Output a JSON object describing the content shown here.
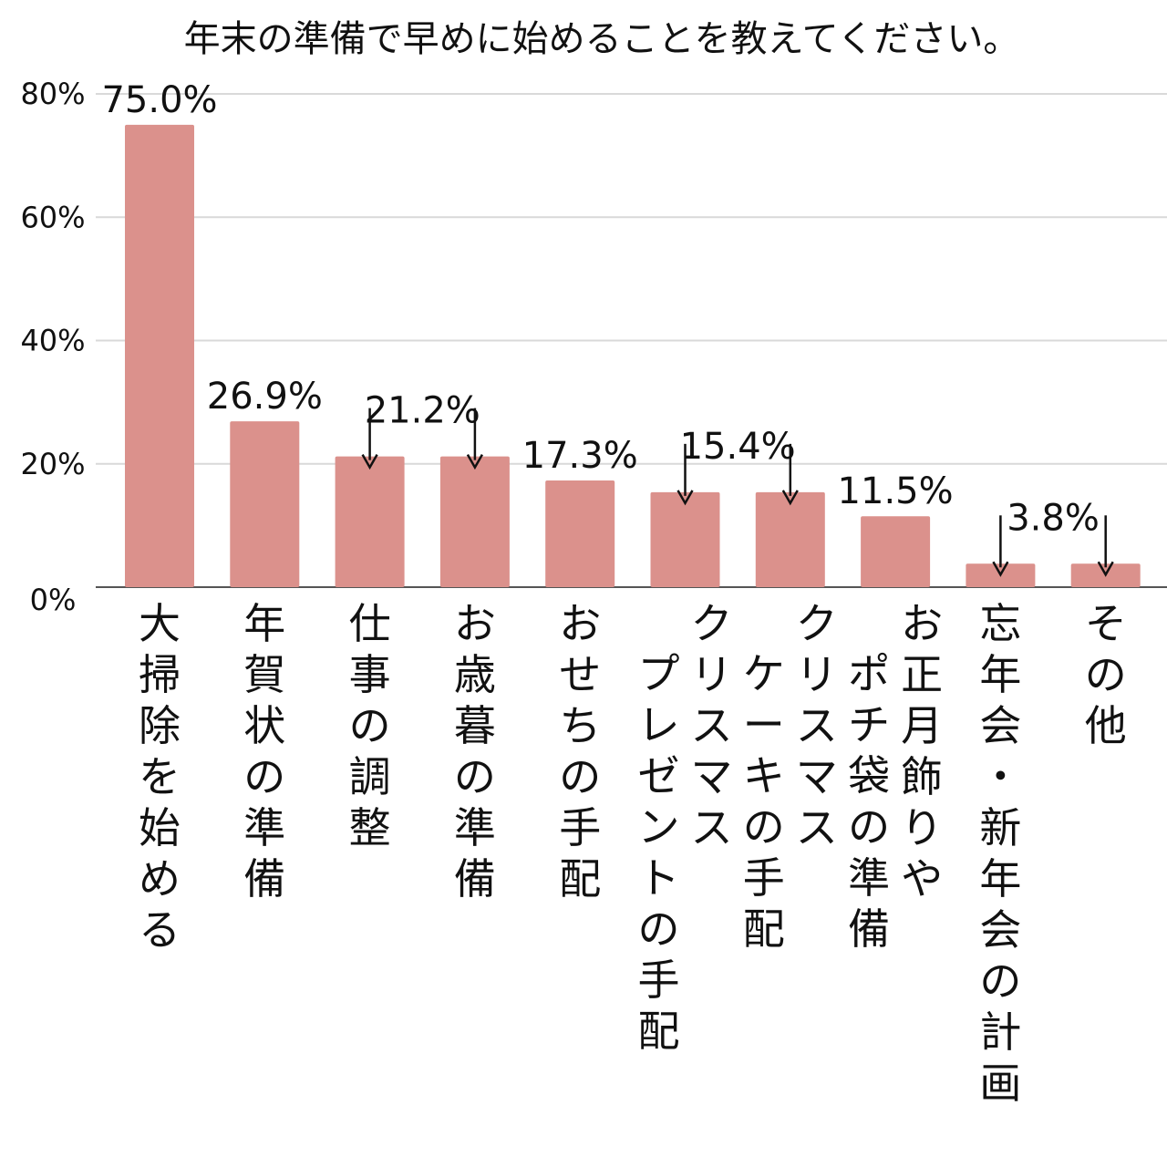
{
  "chart_data": {
    "type": "bar",
    "title": "年末の準備で早めに始めることを教えてください。",
    "xlabel": "",
    "ylabel": "",
    "ylim": [
      0,
      80
    ],
    "yticks": [
      "0%",
      "20%",
      "40%",
      "60%",
      "80%"
    ],
    "ytick_values": [
      0,
      20,
      40,
      60,
      80
    ],
    "grid": true,
    "legend": "none",
    "bar_color": "#db918c",
    "categories": [
      [
        "大掃除を始める"
      ],
      [
        "年賀状の準備"
      ],
      [
        "仕事の調整"
      ],
      [
        "お歳暮の準備"
      ],
      [
        "おせちの手配"
      ],
      [
        "クリスマス",
        "プレゼントの手配"
      ],
      [
        "クリスマス",
        "ケーキの手配"
      ],
      [
        "お正月飾りや",
        "ポチ袋の準備"
      ],
      [
        "忘年会・新年会の計画"
      ],
      [
        "その他"
      ]
    ],
    "values": [
      75.0,
      26.9,
      21.2,
      21.2,
      17.3,
      15.4,
      15.4,
      11.5,
      3.8,
      3.8
    ],
    "data_labels": [
      "75.0%",
      "26.9%",
      "21.2%",
      "",
      "17.3%",
      "15.4%",
      "",
      "11.5%",
      "3.8%",
      ""
    ],
    "label_arrows": [
      false,
      false,
      true,
      true,
      false,
      true,
      true,
      false,
      true,
      true
    ]
  }
}
